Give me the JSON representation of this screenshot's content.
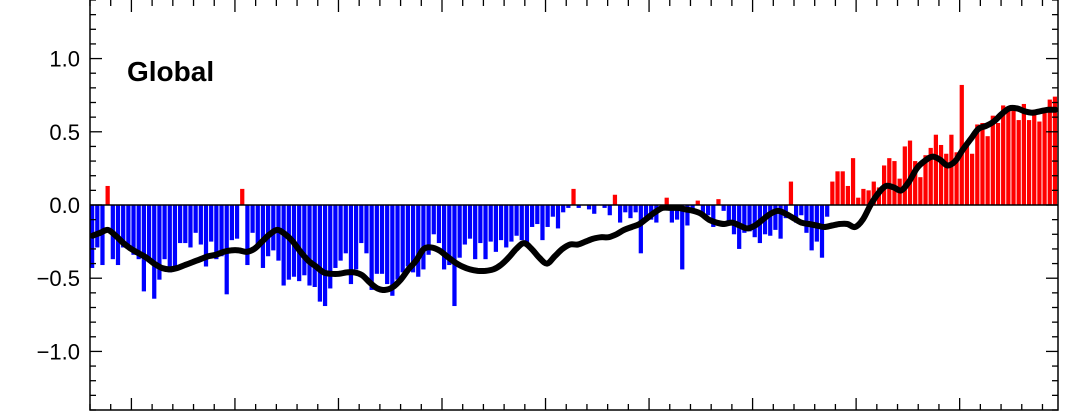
{
  "chart_data": {
    "type": "bar",
    "title": "Global",
    "xlabel": "",
    "ylabel": "",
    "ylim": [
      -1.4,
      1.4
    ],
    "yticks": [
      -1.0,
      -0.5,
      0.0,
      0.5,
      1.0
    ],
    "ytick_labels": [
      "−1.0",
      "−0.5",
      "0.0",
      "0.5",
      "1.0"
    ],
    "grid": false,
    "colors": {
      "positive": "#ff0000",
      "negative": "#0000ff",
      "smooth": "#000000"
    },
    "series": [
      {
        "values": [
          -0.43,
          -0.29,
          -0.41,
          0.13,
          -0.37,
          -0.41,
          -0.29,
          -0.29,
          -0.34,
          -0.37,
          -0.59,
          -0.39,
          -0.64,
          -0.51,
          -0.37,
          -0.46,
          -0.43,
          -0.26,
          -0.26,
          -0.29,
          -0.19,
          -0.27,
          -0.42,
          -0.25,
          -0.37,
          -0.35,
          -0.61,
          -0.24,
          -0.23,
          0.11,
          -0.41,
          -0.19,
          -0.27,
          -0.43,
          -0.35,
          -0.31,
          -0.38,
          -0.55,
          -0.51,
          -0.49,
          -0.52,
          -0.48,
          -0.55,
          -0.56,
          -0.66,
          -0.69,
          -0.57,
          -0.43,
          -0.38,
          -0.33,
          -0.54,
          -0.44,
          -0.26,
          -0.33,
          -0.58,
          -0.47,
          -0.47,
          -0.54,
          -0.62,
          -0.51,
          -0.46,
          -0.42,
          -0.46,
          -0.49,
          -0.44,
          -0.34,
          -0.2,
          -0.26,
          -0.44,
          -0.41,
          -0.69,
          -0.36,
          -0.27,
          -0.23,
          -0.37,
          -0.26,
          -0.37,
          -0.25,
          -0.32,
          -0.24,
          -0.29,
          -0.25,
          -0.21,
          -0.24,
          -0.27,
          -0.15,
          -0.13,
          -0.24,
          -0.15,
          -0.08,
          -0.16,
          -0.05,
          -0.02,
          0.11,
          -0.02,
          0.0,
          -0.03,
          -0.06,
          0.0,
          -0.02,
          -0.07,
          0.07,
          -0.12,
          -0.05,
          -0.09,
          -0.05,
          -0.33,
          -0.08,
          -0.1,
          -0.12,
          -0.02,
          0.05,
          -0.12,
          -0.1,
          -0.44,
          -0.14,
          -0.04,
          0.03,
          -0.06,
          -0.07,
          -0.15,
          0.04,
          -0.04,
          -0.14,
          -0.2,
          -0.3,
          -0.19,
          -0.18,
          -0.22,
          -0.26,
          -0.2,
          -0.21,
          -0.17,
          -0.23,
          -0.09,
          0.16,
          -0.12,
          -0.07,
          -0.19,
          -0.31,
          -0.25,
          -0.36,
          -0.08,
          0.16,
          0.23,
          0.23,
          0.13,
          0.32,
          0.05,
          0.11,
          0.1,
          0.16,
          0.12,
          0.27,
          0.32,
          0.3,
          0.18,
          0.4,
          0.44,
          0.3,
          0.19,
          0.34,
          0.39,
          0.48,
          0.41,
          0.35,
          0.48,
          0.36,
          0.82,
          0.43,
          0.35,
          0.55,
          0.56,
          0.47,
          0.61,
          0.56,
          0.68,
          0.65,
          0.66,
          0.58,
          0.69,
          0.58,
          0.65,
          0.57,
          0.66,
          0.72,
          0.74
        ]
      },
      {
        "type": "line",
        "values": [
          -0.21,
          -0.19,
          -0.17,
          -0.21,
          -0.26,
          -0.3,
          -0.33,
          -0.36,
          -0.4,
          -0.43,
          -0.44,
          -0.43,
          -0.41,
          -0.39,
          -0.37,
          -0.35,
          -0.34,
          -0.32,
          -0.31,
          -0.31,
          -0.32,
          -0.3,
          -0.25,
          -0.2,
          -0.17,
          -0.2,
          -0.25,
          -0.32,
          -0.38,
          -0.42,
          -0.46,
          -0.47,
          -0.47,
          -0.46,
          -0.46,
          -0.48,
          -0.53,
          -0.57,
          -0.58,
          -0.56,
          -0.51,
          -0.44,
          -0.38,
          -0.3,
          -0.29,
          -0.31,
          -0.35,
          -0.39,
          -0.42,
          -0.44,
          -0.45,
          -0.45,
          -0.44,
          -0.41,
          -0.36,
          -0.3,
          -0.26,
          -0.3,
          -0.36,
          -0.4,
          -0.35,
          -0.3,
          -0.27,
          -0.27,
          -0.25,
          -0.23,
          -0.22,
          -0.22,
          -0.2,
          -0.17,
          -0.15,
          -0.13,
          -0.09,
          -0.05,
          -0.02,
          -0.02,
          -0.02,
          -0.03,
          -0.04,
          -0.06,
          -0.1,
          -0.12,
          -0.13,
          -0.12,
          -0.14,
          -0.16,
          -0.14,
          -0.1,
          -0.06,
          -0.04,
          -0.06,
          -0.09,
          -0.12,
          -0.13,
          -0.14,
          -0.15,
          -0.14,
          -0.13,
          -0.13,
          -0.15,
          -0.1,
          0.0,
          0.08,
          0.13,
          0.12,
          0.1,
          0.16,
          0.25,
          0.3,
          0.33,
          0.31,
          0.27,
          0.3,
          0.38,
          0.45,
          0.52,
          0.54,
          0.57,
          0.62,
          0.66,
          0.66,
          0.64,
          0.63,
          0.64,
          0.65,
          0.65
        ]
      }
    ]
  }
}
